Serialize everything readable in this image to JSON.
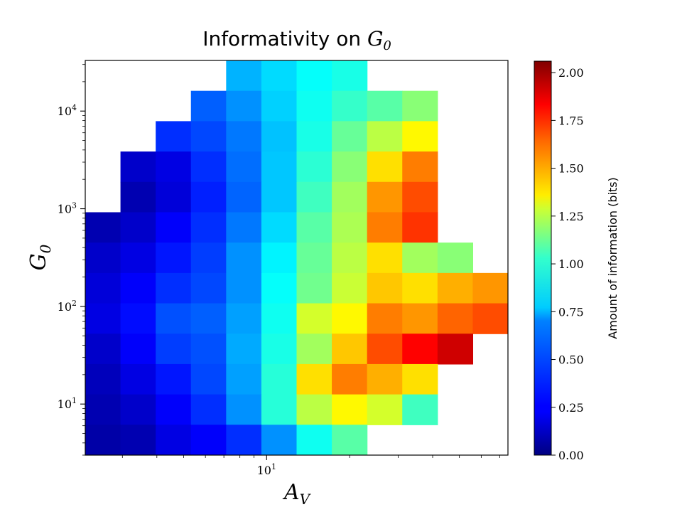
{
  "chart_data": {
    "type": "heatmap",
    "title": "Informativity on",
    "title_math": "G",
    "title_math_sub": "0",
    "xlabel": "A",
    "xlabel_sub": "V",
    "ylabel": "G",
    "ylabel_sub": "0",
    "x_scale": "log",
    "y_scale": "log",
    "xlim": [
      2.2,
      75
    ],
    "ylim": [
      3.0,
      33000
    ],
    "x_ticks": [
      {
        "value": 10,
        "label": "10",
        "exp": "1"
      }
    ],
    "y_ticks": [
      {
        "value": 10,
        "label": "10",
        "exp": "1"
      },
      {
        "value": 100,
        "label": "10",
        "exp": "2"
      },
      {
        "value": 1000,
        "label": "10",
        "exp": "3"
      },
      {
        "value": 10000,
        "label": "10",
        "exp": "4"
      }
    ],
    "colorbar": {
      "label": "Amount of information (bits)",
      "colormap": "jet",
      "min": 0.0,
      "max": 2.06,
      "ticks": [
        "0.00",
        "0.25",
        "0.50",
        "0.75",
        "1.00",
        "1.25",
        "1.50",
        "1.75",
        "2.00"
      ]
    },
    "grid": false,
    "heatmap": {
      "x_log_range": [
        0.342,
        1.875
      ],
      "y_log_range": [
        0.477,
        4.519
      ],
      "columns": 12,
      "rows": 13,
      "values_top_to_bottom": [
        [
          null,
          null,
          null,
          null,
          0.62,
          0.7,
          0.78,
          0.82,
          null,
          null,
          null,
          null
        ],
        [
          null,
          null,
          null,
          0.45,
          0.55,
          0.68,
          0.8,
          0.88,
          0.95,
          1.05,
          null,
          null
        ],
        [
          null,
          null,
          0.35,
          0.4,
          0.5,
          0.65,
          0.82,
          0.98,
          1.15,
          1.3,
          null,
          null
        ],
        [
          null,
          0.15,
          0.2,
          0.35,
          0.48,
          0.66,
          0.86,
          1.05,
          1.35,
          1.55,
          null,
          null
        ],
        [
          null,
          0.1,
          0.18,
          0.32,
          0.46,
          0.66,
          0.9,
          1.1,
          1.5,
          1.65,
          null,
          null
        ],
        [
          0.1,
          0.15,
          0.25,
          0.35,
          0.5,
          0.7,
          0.95,
          1.12,
          1.55,
          1.7,
          null,
          null
        ],
        [
          0.15,
          0.2,
          0.3,
          0.38,
          0.55,
          0.75,
          0.98,
          1.15,
          1.35,
          1.1,
          1.05,
          null
        ],
        [
          0.18,
          0.25,
          0.35,
          0.4,
          0.55,
          0.78,
          1.0,
          1.18,
          1.4,
          1.35,
          1.45,
          1.5
        ],
        [
          0.2,
          0.28,
          0.42,
          0.45,
          0.58,
          0.8,
          1.2,
          1.3,
          1.55,
          1.5,
          1.6,
          1.65
        ],
        [
          0.15,
          0.25,
          0.38,
          0.42,
          0.6,
          0.82,
          1.1,
          1.4,
          1.65,
          1.8,
          1.9,
          null
        ],
        [
          0.12,
          0.2,
          0.3,
          0.4,
          0.58,
          0.85,
          1.35,
          1.55,
          1.45,
          1.35,
          null,
          null
        ],
        [
          0.1,
          0.15,
          0.25,
          0.35,
          0.55,
          0.85,
          1.15,
          1.3,
          1.2,
          0.9,
          null,
          null
        ],
        [
          0.08,
          0.1,
          0.2,
          0.25,
          0.35,
          0.55,
          0.8,
          0.95,
          null,
          null,
          null,
          null
        ]
      ]
    }
  }
}
